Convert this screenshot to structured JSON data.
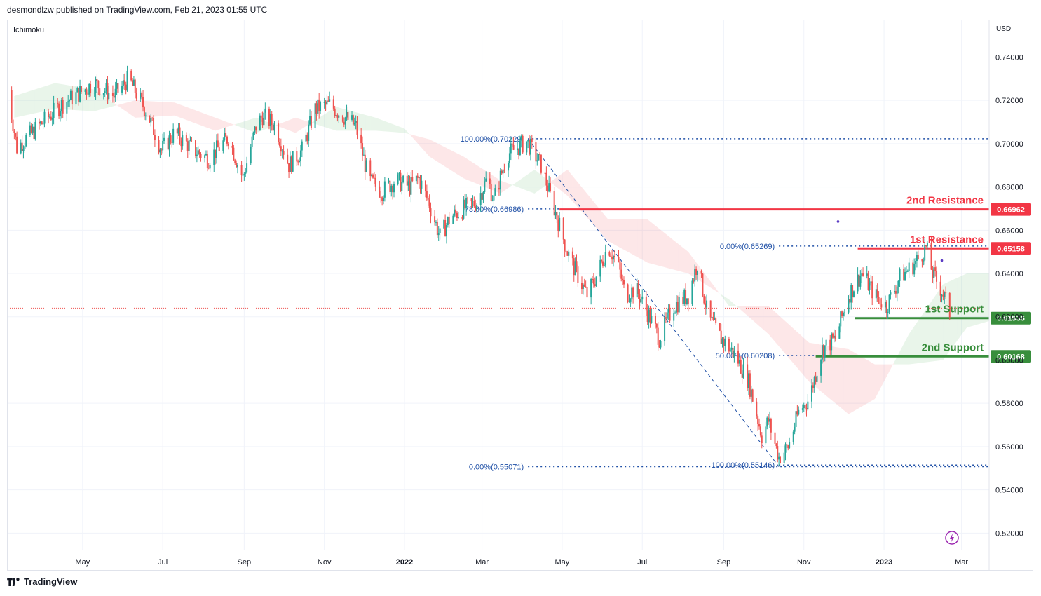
{
  "header": {
    "publish_text": "desmondlzw published on TradingView.com, Feb 21, 2023 01:55 UTC"
  },
  "footer": {
    "brand": "TradingView"
  },
  "colors": {
    "up": "#26a69a",
    "down": "#ef5350",
    "resistance": "#f23645",
    "support": "#388e3c",
    "fib": "#1e4fa6",
    "cloud_green": "rgba(76,175,80,0.12)",
    "cloud_red": "rgba(242,54,69,0.12)"
  },
  "chart_data": {
    "type": "candlestick",
    "indicator": "Ichimoku",
    "currency": "USD",
    "ylim": [
      0.512,
      0.757
    ],
    "y_ticks": [
      "0.74000",
      "0.72000",
      "0.70000",
      "0.68000",
      "0.66000",
      "0.64000",
      "0.62000",
      "0.60000",
      "0.58000",
      "0.56000",
      "0.54000",
      "0.52000"
    ],
    "x_ticks": [
      {
        "label": "May",
        "date": "2021-05-01",
        "bold": false
      },
      {
        "label": "Jul",
        "date": "2021-07-01",
        "bold": false
      },
      {
        "label": "Sep",
        "date": "2021-09-01",
        "bold": false
      },
      {
        "label": "Nov",
        "date": "2021-11-01",
        "bold": false
      },
      {
        "label": "2022",
        "date": "2022-01-01",
        "bold": true
      },
      {
        "label": "Mar",
        "date": "2022-03-01",
        "bold": false
      },
      {
        "label": "May",
        "date": "2022-05-01",
        "bold": false
      },
      {
        "label": "Jul",
        "date": "2022-07-01",
        "bold": false
      },
      {
        "label": "Sep",
        "date": "2022-09-01",
        "bold": false
      },
      {
        "label": "Nov",
        "date": "2022-11-01",
        "bold": false
      },
      {
        "label": "2023",
        "date": "2023-01-01",
        "bold": true
      },
      {
        "label": "Mar",
        "date": "2023-03-01",
        "bold": false
      }
    ],
    "x_range": [
      "2021-03-05",
      "2023-03-22"
    ],
    "price_path": [
      {
        "date": "2021-03-05",
        "price": 0.725
      },
      {
        "date": "2021-03-12",
        "price": 0.698
      },
      {
        "date": "2021-03-25",
        "price": 0.706
      },
      {
        "date": "2021-04-15",
        "price": 0.718
      },
      {
        "date": "2021-05-10",
        "price": 0.728
      },
      {
        "date": "2021-05-25",
        "price": 0.722
      },
      {
        "date": "2021-06-05",
        "price": 0.73
      },
      {
        "date": "2021-06-20",
        "price": 0.713
      },
      {
        "date": "2021-06-30",
        "price": 0.697
      },
      {
        "date": "2021-07-10",
        "price": 0.705
      },
      {
        "date": "2021-07-25",
        "price": 0.697
      },
      {
        "date": "2021-08-05",
        "price": 0.693
      },
      {
        "date": "2021-08-20",
        "price": 0.703
      },
      {
        "date": "2021-08-31",
        "price": 0.684
      },
      {
        "date": "2021-09-10",
        "price": 0.708
      },
      {
        "date": "2021-09-15",
        "price": 0.713
      },
      {
        "date": "2021-09-25",
        "price": 0.708
      },
      {
        "date": "2021-10-05",
        "price": 0.69
      },
      {
        "date": "2021-10-15",
        "price": 0.697
      },
      {
        "date": "2021-10-25",
        "price": 0.716
      },
      {
        "date": "2021-11-05",
        "price": 0.718
      },
      {
        "date": "2021-11-15",
        "price": 0.713
      },
      {
        "date": "2021-11-25",
        "price": 0.708
      },
      {
        "date": "2021-12-05",
        "price": 0.683
      },
      {
        "date": "2021-12-15",
        "price": 0.678
      },
      {
        "date": "2021-12-25",
        "price": 0.683
      },
      {
        "date": "2022-01-05",
        "price": 0.68
      },
      {
        "date": "2022-01-12",
        "price": 0.684
      },
      {
        "date": "2022-01-20",
        "price": 0.672
      },
      {
        "date": "2022-01-28",
        "price": 0.657
      },
      {
        "date": "2022-02-05",
        "price": 0.666
      },
      {
        "date": "2022-02-15",
        "price": 0.67
      },
      {
        "date": "2022-02-25",
        "price": 0.673
      },
      {
        "date": "2022-03-05",
        "price": 0.684
      },
      {
        "date": "2022-03-10",
        "price": 0.674
      },
      {
        "date": "2022-03-20",
        "price": 0.695
      },
      {
        "date": "2022-04-04",
        "price": 0.701
      },
      {
        "date": "2022-04-15",
        "price": 0.69
      },
      {
        "date": "2022-04-25",
        "price": 0.67
      },
      {
        "date": "2022-05-05",
        "price": 0.65
      },
      {
        "date": "2022-05-12",
        "price": 0.64
      },
      {
        "date": "2022-05-20",
        "price": 0.63
      },
      {
        "date": "2022-05-28",
        "price": 0.64
      },
      {
        "date": "2022-06-05",
        "price": 0.653
      },
      {
        "date": "2022-06-13",
        "price": 0.643
      },
      {
        "date": "2022-06-18",
        "price": 0.63
      },
      {
        "date": "2022-06-26",
        "price": 0.633
      },
      {
        "date": "2022-07-05",
        "price": 0.622
      },
      {
        "date": "2022-07-14",
        "price": 0.61
      },
      {
        "date": "2022-07-25",
        "price": 0.625
      },
      {
        "date": "2022-08-05",
        "price": 0.63
      },
      {
        "date": "2022-08-12",
        "price": 0.645
      },
      {
        "date": "2022-08-20",
        "price": 0.62
      },
      {
        "date": "2022-08-30",
        "price": 0.61
      },
      {
        "date": "2022-09-10",
        "price": 0.602
      },
      {
        "date": "2022-09-20",
        "price": 0.59
      },
      {
        "date": "2022-09-30",
        "price": 0.565
      },
      {
        "date": "2022-10-05",
        "price": 0.572
      },
      {
        "date": "2022-10-13",
        "price": 0.555
      },
      {
        "date": "2022-10-20",
        "price": 0.56
      },
      {
        "date": "2022-10-28",
        "price": 0.576
      },
      {
        "date": "2022-11-05",
        "price": 0.582
      },
      {
        "date": "2022-11-15",
        "price": 0.605
      },
      {
        "date": "2022-11-25",
        "price": 0.61
      },
      {
        "date": "2022-12-05",
        "price": 0.63
      },
      {
        "date": "2022-12-15",
        "price": 0.64
      },
      {
        "date": "2022-12-25",
        "price": 0.63
      },
      {
        "date": "2023-01-03",
        "price": 0.625
      },
      {
        "date": "2023-01-13",
        "price": 0.638
      },
      {
        "date": "2023-01-25",
        "price": 0.645
      },
      {
        "date": "2023-02-02",
        "price": 0.652
      },
      {
        "date": "2023-02-07",
        "price": 0.64
      },
      {
        "date": "2023-02-14",
        "price": 0.632
      },
      {
        "date": "2023-02-20",
        "price": 0.622
      }
    ],
    "ichimoku_cloud_anchors": [
      {
        "date": "2021-03-10",
        "a": 0.722,
        "b": 0.712
      },
      {
        "date": "2021-04-10",
        "a": 0.728,
        "b": 0.716
      },
      {
        "date": "2021-05-10",
        "a": 0.725,
        "b": 0.715
      },
      {
        "date": "2021-06-10",
        "a": 0.712,
        "b": 0.72
      },
      {
        "date": "2021-07-10",
        "a": 0.713,
        "b": 0.719
      },
      {
        "date": "2021-08-10",
        "a": 0.706,
        "b": 0.712
      },
      {
        "date": "2021-09-10",
        "a": 0.712,
        "b": 0.705
      },
      {
        "date": "2021-10-10",
        "a": 0.705,
        "b": 0.712
      },
      {
        "date": "2021-11-10",
        "a": 0.717,
        "b": 0.706
      },
      {
        "date": "2021-12-10",
        "a": 0.712,
        "b": 0.706
      },
      {
        "date": "2022-01-01",
        "a": 0.707,
        "b": 0.705
      },
      {
        "date": "2022-01-20",
        "a": 0.694,
        "b": 0.702
      },
      {
        "date": "2022-02-15",
        "a": 0.684,
        "b": 0.694
      },
      {
        "date": "2022-03-15",
        "a": 0.677,
        "b": 0.683
      },
      {
        "date": "2022-04-10",
        "a": 0.688,
        "b": 0.677
      },
      {
        "date": "2022-05-05",
        "a": 0.676,
        "b": 0.688
      },
      {
        "date": "2022-06-05",
        "a": 0.655,
        "b": 0.665
      },
      {
        "date": "2022-07-05",
        "a": 0.645,
        "b": 0.665
      },
      {
        "date": "2022-08-05",
        "a": 0.64,
        "b": 0.65
      },
      {
        "date": "2022-09-05",
        "a": 0.628,
        "b": 0.625
      },
      {
        "date": "2022-10-05",
        "a": 0.612,
        "b": 0.625
      },
      {
        "date": "2022-11-05",
        "a": 0.59,
        "b": 0.608
      },
      {
        "date": "2022-12-05",
        "a": 0.575,
        "b": 0.605
      },
      {
        "date": "2022-12-25",
        "a": 0.582,
        "b": 0.598
      },
      {
        "date": "2023-01-20",
        "a": 0.612,
        "b": 0.598
      },
      {
        "date": "2023-02-15",
        "a": 0.635,
        "b": 0.6
      },
      {
        "date": "2023-03-05",
        "a": 0.64,
        "b": 0.615
      },
      {
        "date": "2023-03-22",
        "a": 0.64,
        "b": 0.618
      }
    ],
    "fibonacci": [
      {
        "label": "100.00%(0.70229)",
        "price": 0.70229,
        "from": "2022-04-05",
        "to": "2023-03-22"
      },
      {
        "label": "78.60%(0.66986)",
        "price": 0.66986,
        "from": "2022-04-05",
        "to": "2022-04-29"
      },
      {
        "label": "0.00%(0.55071)",
        "price": 0.55071,
        "from": "2022-04-05",
        "to": "2023-03-22"
      },
      {
        "label": "0.00%(0.65269)",
        "price": 0.65269,
        "from": "2022-10-13",
        "to": "2023-03-22"
      },
      {
        "label": "50.00%(0.60208)",
        "price": 0.60208,
        "from": "2022-10-13",
        "to": "2022-11-10"
      },
      {
        "label": "100.00%(0.55146)",
        "price": 0.55146,
        "from": "2022-10-13",
        "to": "2023-03-22"
      }
    ],
    "fib_trend_line": {
      "from": {
        "date": "2022-04-05",
        "price": 0.7023
      },
      "to": {
        "date": "2022-10-13",
        "price": 0.5507
      }
    },
    "levels": [
      {
        "name": "2nd Resistance",
        "price": 0.66962,
        "price_label": "0.66962",
        "kind": "resistance",
        "from": "2022-04-29"
      },
      {
        "name": "1st Resistance",
        "price": 0.65158,
        "price_label": "0.65158",
        "kind": "resistance",
        "from": "2022-12-12"
      },
      {
        "name": "1st Support",
        "price": 0.61936,
        "price_label": "0.61936",
        "kind": "support",
        "from": "2022-12-10"
      },
      {
        "name": "2nd Support",
        "price": 0.60168,
        "price_label": "0.60168",
        "kind": "support",
        "from": "2022-11-10"
      }
    ],
    "current_price": 0.624,
    "markers": [
      {
        "date": "2022-11-27",
        "price": 0.664
      },
      {
        "date": "2023-02-14",
        "price": 0.646
      }
    ]
  }
}
